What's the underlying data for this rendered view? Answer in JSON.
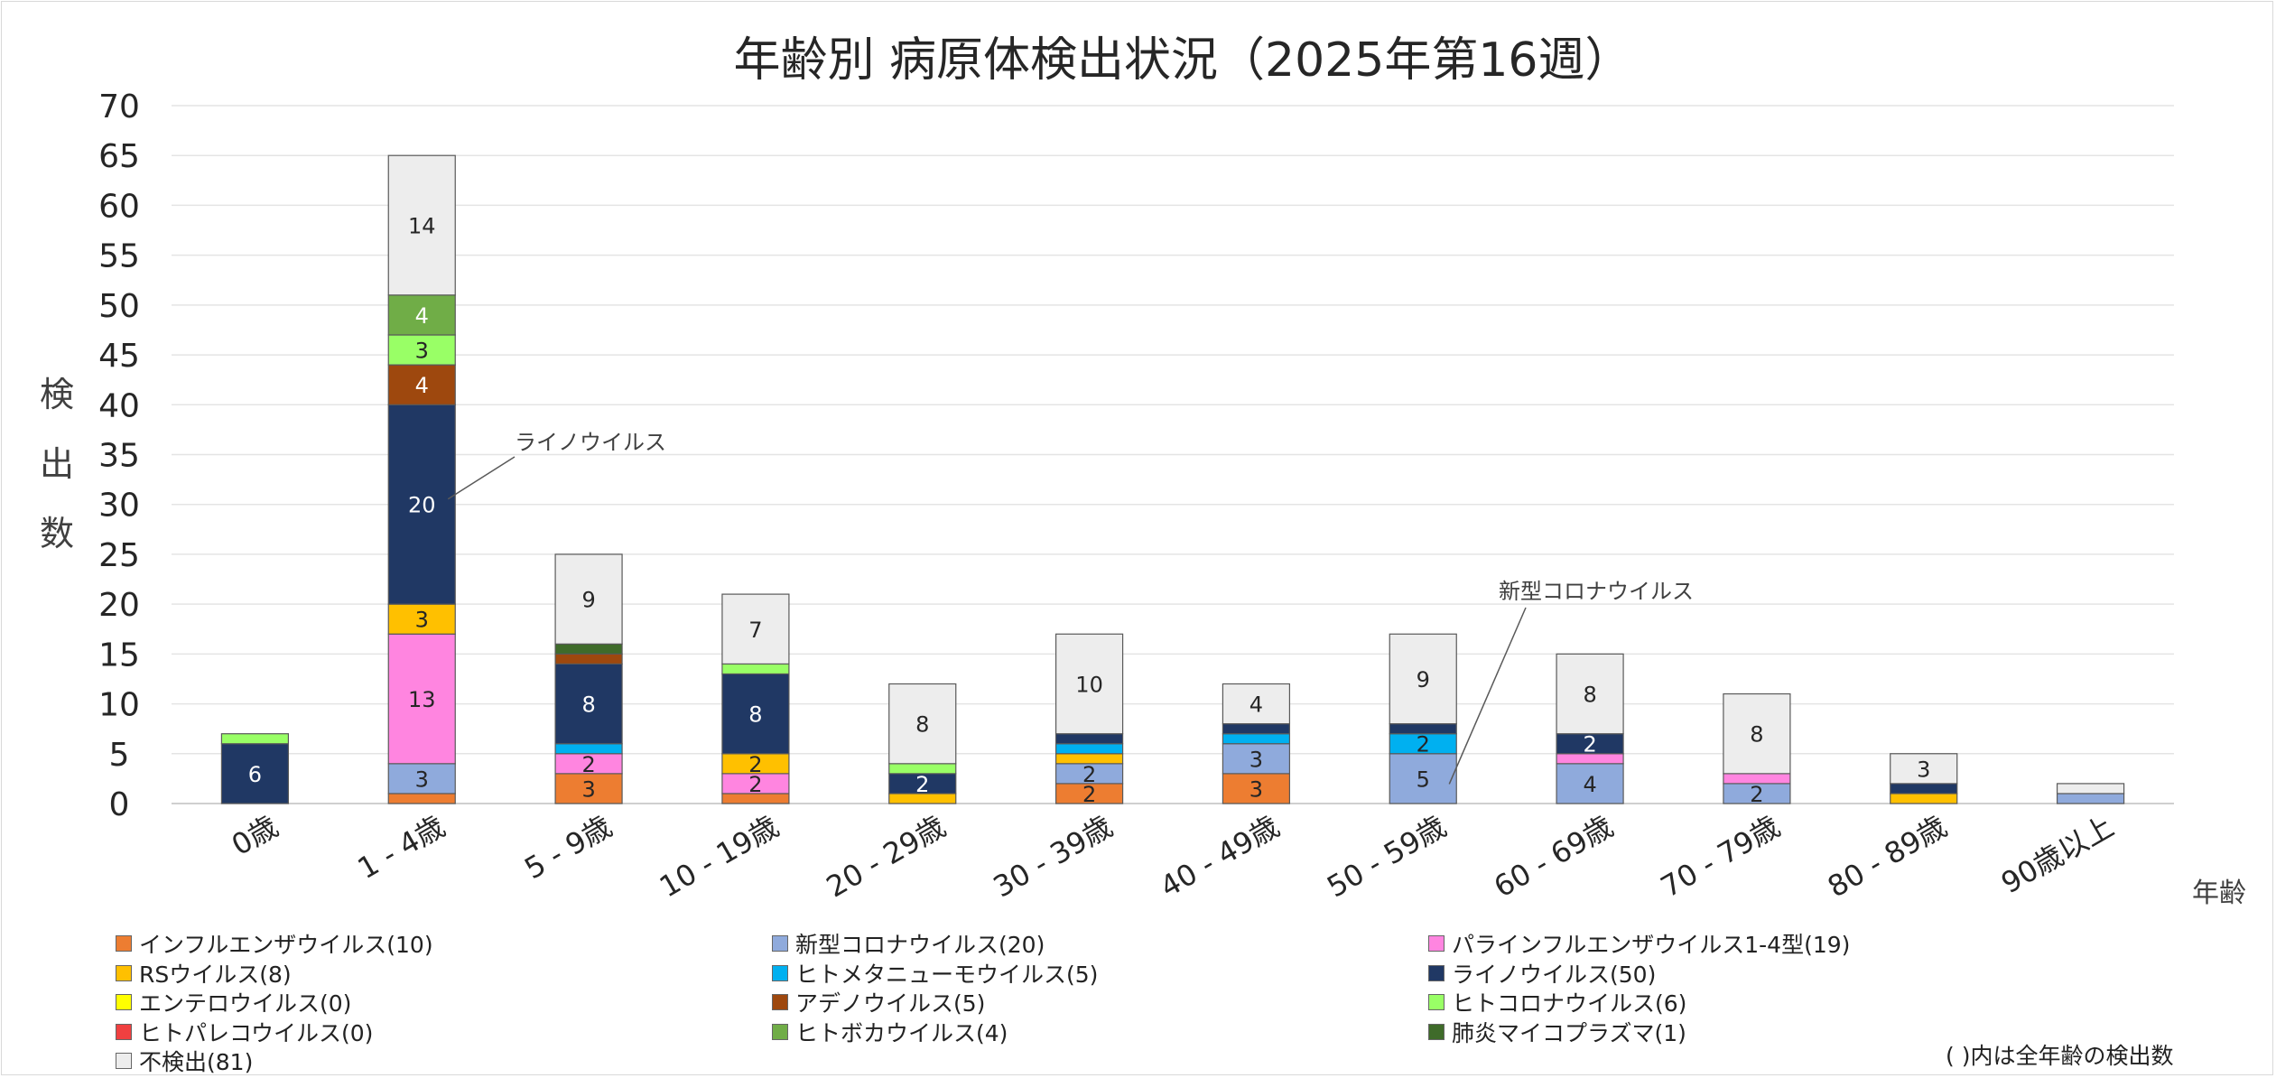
{
  "chart_data": {
    "type": "bar",
    "stacked": true,
    "title": "年齢別 病原体検出状況（2025年第16週）",
    "ylabel": "検出数",
    "xlabel": "年齢",
    "ylim": [
      0,
      70
    ],
    "yticks": [
      0,
      5,
      10,
      15,
      20,
      25,
      30,
      35,
      40,
      45,
      50,
      55,
      60,
      65,
      70
    ],
    "grid": true,
    "legend_position": "bottom",
    "categories": [
      "0歳",
      "1 - 4歳",
      "5 - 9歳",
      "10 - 19歳",
      "20 - 29歳",
      "30 - 39歳",
      "40 - 49歳",
      "50 - 59歳",
      "60 - 69歳",
      "70 - 79歳",
      "80 - 89歳",
      "90歳以上"
    ],
    "series": [
      {
        "name": "インフルエンザウイルス(10)",
        "color": "#ED7D31",
        "values": [
          0,
          1,
          3,
          1,
          0,
          2,
          3,
          0,
          0,
          0,
          0,
          0
        ]
      },
      {
        "name": "新型コロナウイルス(20)",
        "color": "#8FAADC",
        "values": [
          0,
          3,
          0,
          0,
          0,
          2,
          3,
          5,
          4,
          2,
          0,
          1
        ]
      },
      {
        "name": "パラインフルエンザウイルス1-4型(19)",
        "color": "#FF85E0",
        "values": [
          0,
          13,
          2,
          2,
          0,
          0,
          0,
          0,
          1,
          1,
          0,
          0
        ]
      },
      {
        "name": "RSウイルス(8)",
        "color": "#FFC000",
        "values": [
          0,
          3,
          0,
          2,
          1,
          1,
          0,
          0,
          0,
          0,
          1,
          0
        ]
      },
      {
        "name": "ヒトメタニューモウイルス(5)",
        "color": "#00B0F0",
        "values": [
          0,
          0,
          1,
          0,
          0,
          1,
          1,
          2,
          0,
          0,
          0,
          0
        ]
      },
      {
        "name": "ライノウイルス(50)",
        "color": "#203864",
        "values": [
          6,
          20,
          8,
          8,
          2,
          1,
          1,
          1,
          2,
          0,
          1,
          0
        ]
      },
      {
        "name": "エンテロウイルス(0)",
        "color": "#FFFF00",
        "values": [
          0,
          0,
          0,
          0,
          0,
          0,
          0,
          0,
          0,
          0,
          0,
          0
        ]
      },
      {
        "name": "アデノウイルス(5)",
        "color": "#9E480E",
        "values": [
          0,
          4,
          1,
          0,
          0,
          0,
          0,
          0,
          0,
          0,
          0,
          0
        ]
      },
      {
        "name": "ヒトコロナウイルス(6)",
        "color": "#99FF66",
        "values": [
          1,
          3,
          0,
          1,
          1,
          0,
          0,
          0,
          0,
          0,
          0,
          0
        ]
      },
      {
        "name": "ヒトパレコウイルス(0)",
        "color": "#F04040",
        "values": [
          0,
          0,
          0,
          0,
          0,
          0,
          0,
          0,
          0,
          0,
          0,
          0
        ]
      },
      {
        "name": "ヒトボカウイルス(4)",
        "color": "#70AD47",
        "values": [
          0,
          4,
          0,
          0,
          0,
          0,
          0,
          0,
          0,
          0,
          0,
          0
        ]
      },
      {
        "name": "肺炎マイコプラズマ(1)",
        "color": "#3F6B2A",
        "values": [
          0,
          0,
          1,
          0,
          0,
          0,
          0,
          0,
          0,
          0,
          0,
          0
        ]
      },
      {
        "name": "不検出(81)",
        "color": "#EDEDED",
        "values": [
          0,
          14,
          9,
          7,
          8,
          10,
          4,
          9,
          8,
          8,
          3,
          1
        ]
      }
    ],
    "data_labels": [
      {
        "category": 0,
        "series": 5,
        "text": "6"
      },
      {
        "category": 1,
        "series": 1,
        "text": "3"
      },
      {
        "category": 1,
        "series": 2,
        "text": "13"
      },
      {
        "category": 1,
        "series": 3,
        "text": "3"
      },
      {
        "category": 1,
        "series": 5,
        "text": "20"
      },
      {
        "category": 1,
        "series": 7,
        "text": "4"
      },
      {
        "category": 1,
        "series": 8,
        "text": "3"
      },
      {
        "category": 1,
        "series": 10,
        "text": "4"
      },
      {
        "category": 1,
        "series": 12,
        "text": "14"
      },
      {
        "category": 2,
        "series": 0,
        "text": "3"
      },
      {
        "category": 2,
        "series": 2,
        "text": "2"
      },
      {
        "category": 2,
        "series": 5,
        "text": "8"
      },
      {
        "category": 2,
        "series": 12,
        "text": "9"
      },
      {
        "category": 3,
        "series": 2,
        "text": "2"
      },
      {
        "category": 3,
        "series": 3,
        "text": "2"
      },
      {
        "category": 3,
        "series": 5,
        "text": "8"
      },
      {
        "category": 3,
        "series": 12,
        "text": "7"
      },
      {
        "category": 4,
        "series": 5,
        "text": "2"
      },
      {
        "category": 4,
        "series": 12,
        "text": "8"
      },
      {
        "category": 5,
        "series": 0,
        "text": "2"
      },
      {
        "category": 5,
        "series": 1,
        "text": "2"
      },
      {
        "category": 5,
        "series": 12,
        "text": "10"
      },
      {
        "category": 6,
        "series": 0,
        "text": "3"
      },
      {
        "category": 6,
        "series": 1,
        "text": "3"
      },
      {
        "category": 6,
        "series": 12,
        "text": "4"
      },
      {
        "category": 7,
        "series": 1,
        "text": "5"
      },
      {
        "category": 7,
        "series": 4,
        "text": "2"
      },
      {
        "category": 7,
        "series": 12,
        "text": "9"
      },
      {
        "category": 8,
        "series": 1,
        "text": "4"
      },
      {
        "category": 8,
        "series": 5,
        "text": "2"
      },
      {
        "category": 8,
        "series": 12,
        "text": "8"
      },
      {
        "category": 9,
        "series": 1,
        "text": "2"
      },
      {
        "category": 9,
        "series": 12,
        "text": "8"
      },
      {
        "category": 10,
        "series": 12,
        "text": "3"
      }
    ],
    "annotations": [
      {
        "text": "ライノウイルス",
        "category": 1,
        "series": 5
      },
      {
        "text": "新型コロナウイルス",
        "category": 7,
        "series": 1
      }
    ],
    "footnote": "( )内は全年齢の検出数"
  }
}
